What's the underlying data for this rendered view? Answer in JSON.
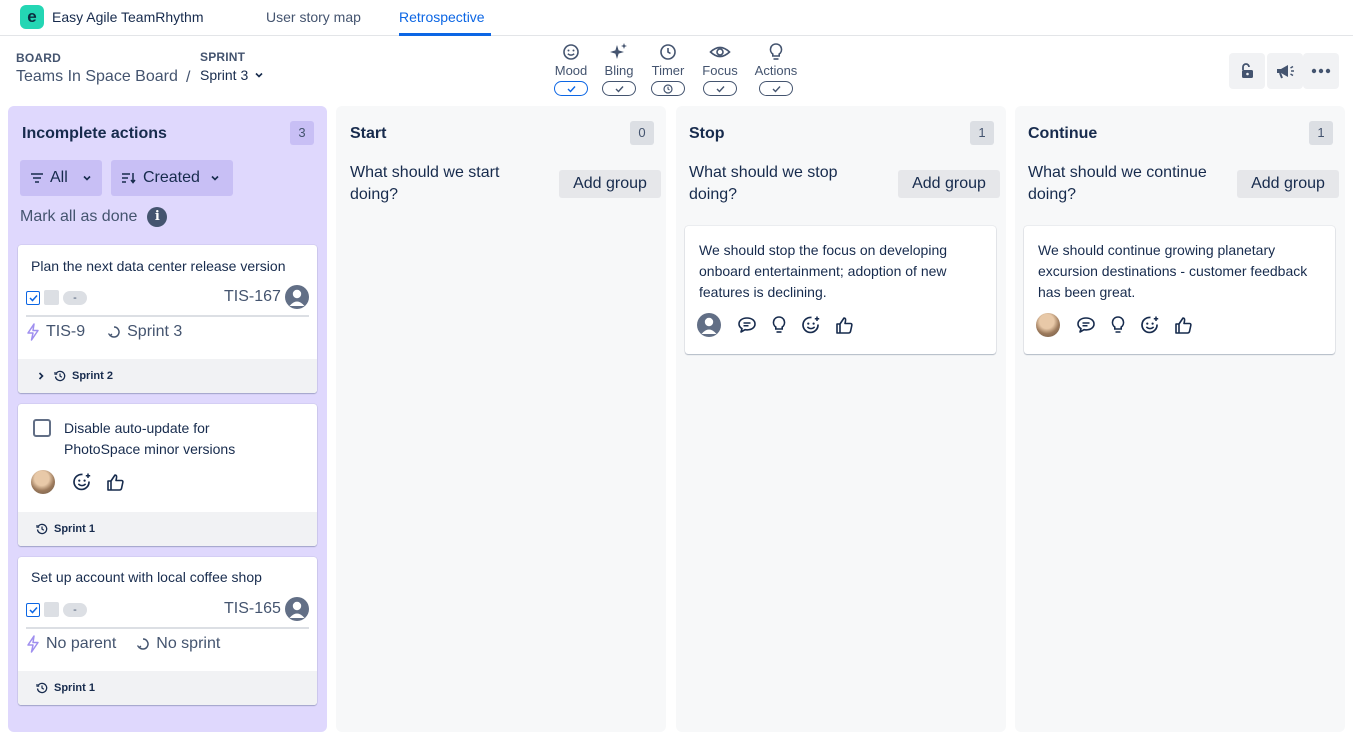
{
  "app": {
    "name": "Easy Agile TeamRhythm",
    "logo_letter": "e"
  },
  "nav_tabs": [
    {
      "label": "User story map",
      "active": false
    },
    {
      "label": "Retrospective",
      "active": true
    }
  ],
  "header": {
    "board_label": "BOARD",
    "board_name": "Teams In Space Board",
    "separator": "/",
    "sprint_label": "SPRINT",
    "sprint_value": "Sprint 3"
  },
  "tools": [
    {
      "label": "Mood",
      "icon": "smile-icon",
      "active": true
    },
    {
      "label": "Bling",
      "icon": "sparkle-icon",
      "active": false
    },
    {
      "label": "Timer",
      "icon": "clock-icon",
      "active": false
    },
    {
      "label": "Focus",
      "icon": "eye-icon",
      "active": false
    },
    {
      "label": "Actions",
      "icon": "lightbulb-icon",
      "active": false
    }
  ],
  "right_buttons": [
    "unlock-icon",
    "megaphone-icon",
    "more-icon"
  ],
  "actions_column": {
    "title": "Incomplete actions",
    "count": "3",
    "filter_all": "All",
    "sort_label": "Created",
    "mark_all": "Mark all as done",
    "info_glyph": "i",
    "cards": [
      {
        "title": "Plan the next data center release version",
        "status": "-",
        "key": "TIS-167",
        "parent": "TIS-9",
        "sprint": "Sprint 3",
        "footer": "Sprint 2"
      },
      {
        "title": "Disable auto-update for PhotoSpace minor versions",
        "footer": "Sprint 1"
      },
      {
        "title": "Set up account with local coffee shop",
        "status": "-",
        "key": "TIS-165",
        "parent": "No parent",
        "sprint": "No sprint",
        "footer": "Sprint 1"
      }
    ]
  },
  "columns": [
    {
      "title": "Start",
      "count": "0",
      "prompt": "What should we start doing?",
      "add_label": "Add group"
    },
    {
      "title": "Stop",
      "count": "1",
      "prompt": "What should we stop doing?",
      "add_label": "Add group",
      "card": "We should stop the focus on developing onboard entertainment; adoption of new features is declining."
    },
    {
      "title": "Continue",
      "count": "1",
      "prompt": "What should we continue doing?",
      "add_label": "Add group",
      "card": "We should continue growing planetary excursion destinations - customer feedback has been great."
    }
  ],
  "colors": {
    "accent": "#0c66e4",
    "actions_bg": "#dfd8fd",
    "column_bg": "#f7f8f9",
    "logo": "#24d6b4"
  }
}
